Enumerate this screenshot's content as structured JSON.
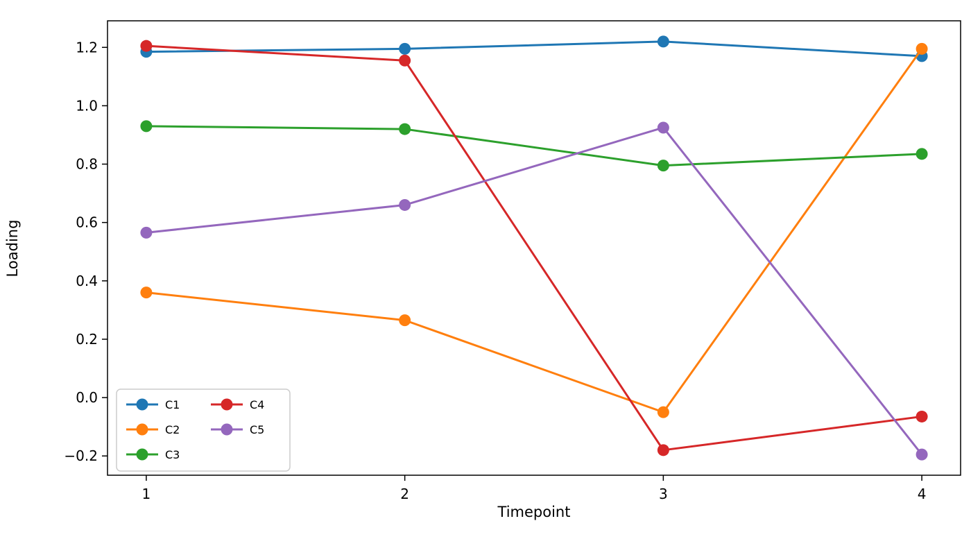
{
  "chart_data": {
    "type": "line",
    "title": "",
    "xlabel": "Timepoint",
    "ylabel": "Loading",
    "x": [
      1,
      2,
      3,
      4
    ],
    "series": [
      {
        "name": "C1",
        "color": "#1f77b4",
        "values": [
          1.185,
          1.195,
          1.22,
          1.17
        ]
      },
      {
        "name": "C2",
        "color": "#ff7f0e",
        "values": [
          0.36,
          0.265,
          -0.05,
          1.195
        ]
      },
      {
        "name": "C3",
        "color": "#2ca02c",
        "values": [
          0.93,
          0.92,
          0.795,
          0.835
        ]
      },
      {
        "name": "C4",
        "color": "#d62728",
        "values": [
          1.205,
          1.155,
          -0.18,
          -0.065
        ]
      },
      {
        "name": "C5",
        "color": "#9467bd",
        "values": [
          0.565,
          0.66,
          0.925,
          -0.195
        ]
      }
    ],
    "xlim": [
      0.85,
      4.15
    ],
    "ylim": [
      -0.266,
      1.291
    ],
    "xticks": [
      1,
      2,
      3,
      4
    ],
    "yticks": [
      -0.2,
      0.0,
      0.2,
      0.4,
      0.6,
      0.8,
      1.0,
      1.2
    ],
    "grid": false,
    "legend_position": "lower left",
    "legend_columns": 2,
    "marker": "circle",
    "marker_radius": 8.5,
    "line_width": 3,
    "spine_color": "#000000",
    "tick_label_size": 20,
    "legend_label_size": 16
  }
}
